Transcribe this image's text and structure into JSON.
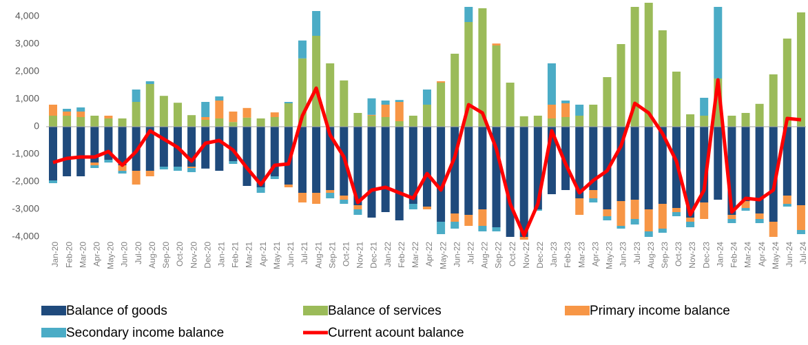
{
  "chart_data": {
    "type": "bar",
    "stacked": true,
    "categories": [
      "Jan-20",
      "Feb-20",
      "Mar-20",
      "Apr-20",
      "May-20",
      "Jun-20",
      "Jul-20",
      "Aug-20",
      "Sep-20",
      "Oct-20",
      "Nov-20",
      "Dec-20",
      "Jan-21",
      "Feb-21",
      "Mar-21",
      "Apr-21",
      "May-21",
      "Jun-21",
      "Jul-21",
      "Aug-21",
      "Sep-21",
      "Oct-21",
      "Nov-21",
      "Dec-21",
      "Jan-22",
      "Feb-22",
      "Mar-22",
      "Apr-22",
      "May-22",
      "Jun-22",
      "Jul-22",
      "Aug-22",
      "Sep-22",
      "Oct-22",
      "Nov-22",
      "Dec-22",
      "Jan-23",
      "Feb-23",
      "Mar-23",
      "Apr-23",
      "May-23",
      "Jun-23",
      "Jul-23",
      "Aug-23",
      "Sep-23",
      "Oct-23",
      "Nov-23",
      "Dec-23",
      "Jan-24",
      "Feb-24",
      "Mar-24",
      "Apr-24",
      "May-24",
      "Jun-24",
      "Jul-24"
    ],
    "series": [
      {
        "name": "Balance of goods",
        "color": "#1f4a7c",
        "values": [
          -1950,
          -1800,
          -1800,
          -1300,
          -1200,
          -1400,
          -1600,
          -1600,
          -1450,
          -1450,
          -1450,
          -1520,
          -1600,
          -1250,
          -2150,
          -2200,
          -1800,
          -2100,
          -2400,
          -2400,
          -2300,
          -2500,
          -2850,
          -3300,
          -3100,
          -3400,
          -2800,
          -2900,
          -3450,
          -3150,
          -3200,
          -3000,
          -3650,
          -4000,
          -4000,
          -3000,
          -2450,
          -2300,
          -2600,
          -2300,
          -3000,
          -2700,
          -2650,
          -3000,
          -2800,
          -2950,
          -3300,
          -2750,
          -2650,
          -3200,
          -2700,
          -3150,
          -3450,
          -2500,
          -2850
        ]
      },
      {
        "name": "Balance of services",
        "color": "#9bbb59",
        "values": [
          400,
          400,
          350,
          400,
          300,
          300,
          900,
          1550,
          1120,
          870,
          420,
          250,
          300,
          170,
          330,
          300,
          350,
          850,
          2480,
          3300,
          2300,
          1680,
          500,
          400,
          350,
          200,
          400,
          800,
          1600,
          2650,
          3800,
          4300,
          2950,
          1600,
          380,
          400,
          300,
          350,
          400,
          800,
          1800,
          3000,
          4350,
          4500,
          3500,
          2000,
          450,
          400,
          1750,
          400,
          500,
          830,
          1900,
          3200,
          4150
        ]
      },
      {
        "name": "Primary income balance",
        "color": "#f79646",
        "values": [
          400,
          150,
          200,
          -100,
          100,
          -200,
          -500,
          -200,
          0,
          0,
          -50,
          100,
          650,
          380,
          350,
          0,
          170,
          -100,
          -350,
          -400,
          -100,
          -150,
          -150,
          30,
          450,
          700,
          0,
          -100,
          50,
          -300,
          -400,
          -600,
          70,
          0,
          -100,
          0,
          500,
          500,
          -600,
          -300,
          -250,
          -900,
          -700,
          -800,
          -900,
          -150,
          -150,
          -600,
          0,
          -150,
          -250,
          -200,
          -550,
          -300,
          -900
        ]
      },
      {
        "name": "Secondary income balance",
        "color": "#4bacc6",
        "values": [
          -100,
          100,
          150,
          -100,
          -100,
          -100,
          450,
          100,
          -100,
          -150,
          -150,
          550,
          150,
          -100,
          0,
          -200,
          -100,
          50,
          650,
          900,
          -200,
          -150,
          -200,
          600,
          150,
          70,
          -200,
          550,
          -450,
          -250,
          550,
          -200,
          -150,
          0,
          0,
          -50,
          1500,
          100,
          400,
          -150,
          -150,
          -100,
          -200,
          -200,
          -150,
          -150,
          -200,
          650,
          2600,
          -150,
          -100,
          -150,
          0,
          -100,
          -150
        ]
      },
      {
        "name": "Current acount balance",
        "color": "#ff0000",
        "type": "line",
        "values": [
          -1300,
          -1150,
          -1100,
          -1100,
          -900,
          -1400,
          -900,
          -150,
          -450,
          -750,
          -1250,
          -600,
          -500,
          -850,
          -1500,
          -2100,
          -1400,
          -1350,
          400,
          1400,
          -300,
          -1100,
          -2750,
          -2300,
          -2200,
          -2400,
          -2600,
          -1700,
          -2300,
          -1100,
          800,
          500,
          -800,
          -2800,
          -3950,
          -2800,
          -150,
          -1350,
          -2400,
          -1950,
          -1600,
          -700,
          850,
          500,
          -250,
          -1250,
          -3200,
          -2300,
          1700,
          -3100,
          -2600,
          -2650,
          -2300,
          300,
          250
        ]
      }
    ],
    "ylim": [
      -4000,
      4500
    ],
    "yticks": [
      {
        "value": -4000,
        "label": "-4,000"
      },
      {
        "value": -3000,
        "label": "-3,000"
      },
      {
        "value": -2000,
        "label": "-2,000"
      },
      {
        "value": -1000,
        "label": "-1,000"
      },
      0,
      {
        "value": 1000,
        "label": "1,000"
      },
      {
        "value": 2000,
        "label": "2,000"
      },
      {
        "value": 3000,
        "label": "3,000"
      },
      {
        "value": 4000,
        "label": "4,000"
      }
    ],
    "grid": false,
    "legend": "bottom"
  }
}
